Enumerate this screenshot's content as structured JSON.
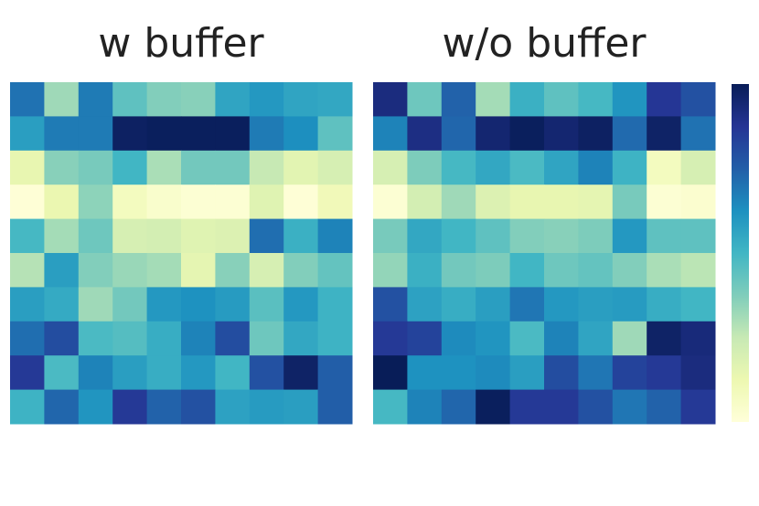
{
  "chart_data": [
    {
      "type": "heatmap",
      "title": "w buffer",
      "clim": [
        0,
        1
      ],
      "colorscale": [
        "#ffffd9",
        "#edf8b1",
        "#c7e9b4",
        "#7fcdbb",
        "#41b6c4",
        "#1d91c0",
        "#225ea8",
        "#253494",
        "#081d58"
      ],
      "values": [
        [
          0.7,
          0.32,
          0.68,
          0.44,
          0.37,
          0.36,
          0.56,
          0.6,
          0.56,
          0.55
        ],
        [
          0.58,
          0.68,
          0.68,
          0.98,
          0.99,
          0.99,
          0.99,
          0.68,
          0.63,
          0.44
        ],
        [
          0.14,
          0.36,
          0.39,
          0.5,
          0.3,
          0.4,
          0.4,
          0.25,
          0.16,
          0.2
        ],
        [
          0.01,
          0.13,
          0.35,
          0.08,
          0.04,
          0.02,
          0.02,
          0.17,
          0.01,
          0.1
        ],
        [
          0.49,
          0.31,
          0.41,
          0.2,
          0.21,
          0.17,
          0.18,
          0.71,
          0.52,
          0.66
        ],
        [
          0.28,
          0.58,
          0.37,
          0.33,
          0.31,
          0.15,
          0.36,
          0.2,
          0.37,
          0.43
        ],
        [
          0.58,
          0.54,
          0.32,
          0.4,
          0.6,
          0.62,
          0.59,
          0.45,
          0.6,
          0.51
        ],
        [
          0.71,
          0.8,
          0.48,
          0.46,
          0.53,
          0.66,
          0.8,
          0.41,
          0.55,
          0.51
        ],
        [
          0.86,
          0.48,
          0.66,
          0.58,
          0.53,
          0.6,
          0.5,
          0.79,
          0.97,
          0.75
        ],
        [
          0.51,
          0.73,
          0.61,
          0.86,
          0.74,
          0.79,
          0.57,
          0.59,
          0.58,
          0.75
        ]
      ]
    },
    {
      "type": "heatmap",
      "title": "w/o buffer",
      "clim": [
        0,
        1
      ],
      "colorscale": [
        "#ffffd9",
        "#edf8b1",
        "#c7e9b4",
        "#7fcdbb",
        "#41b6c4",
        "#1d91c0",
        "#225ea8",
        "#253494",
        "#081d58"
      ],
      "values": [
        [
          0.92,
          0.41,
          0.74,
          0.31,
          0.52,
          0.44,
          0.49,
          0.61,
          0.87,
          0.79
        ],
        [
          0.66,
          0.91,
          0.73,
          0.95,
          0.99,
          0.95,
          0.98,
          0.72,
          0.97,
          0.7
        ],
        [
          0.2,
          0.38,
          0.49,
          0.55,
          0.48,
          0.56,
          0.66,
          0.51,
          0.08,
          0.2
        ],
        [
          0.02,
          0.21,
          0.32,
          0.18,
          0.14,
          0.14,
          0.15,
          0.39,
          0.02,
          0.03
        ],
        [
          0.39,
          0.55,
          0.5,
          0.44,
          0.37,
          0.36,
          0.38,
          0.6,
          0.44,
          0.44
        ],
        [
          0.34,
          0.52,
          0.4,
          0.38,
          0.5,
          0.41,
          0.43,
          0.37,
          0.3,
          0.27
        ],
        [
          0.79,
          0.57,
          0.53,
          0.58,
          0.69,
          0.6,
          0.58,
          0.59,
          0.53,
          0.5
        ],
        [
          0.86,
          0.83,
          0.64,
          0.61,
          0.48,
          0.66,
          0.56,
          0.32,
          0.97,
          0.93
        ],
        [
          1.0,
          0.62,
          0.62,
          0.64,
          0.58,
          0.8,
          0.69,
          0.83,
          0.86,
          0.92
        ],
        [
          0.49,
          0.66,
          0.73,
          0.99,
          0.86,
          0.86,
          0.79,
          0.69,
          0.74,
          0.86
        ]
      ]
    }
  ]
}
